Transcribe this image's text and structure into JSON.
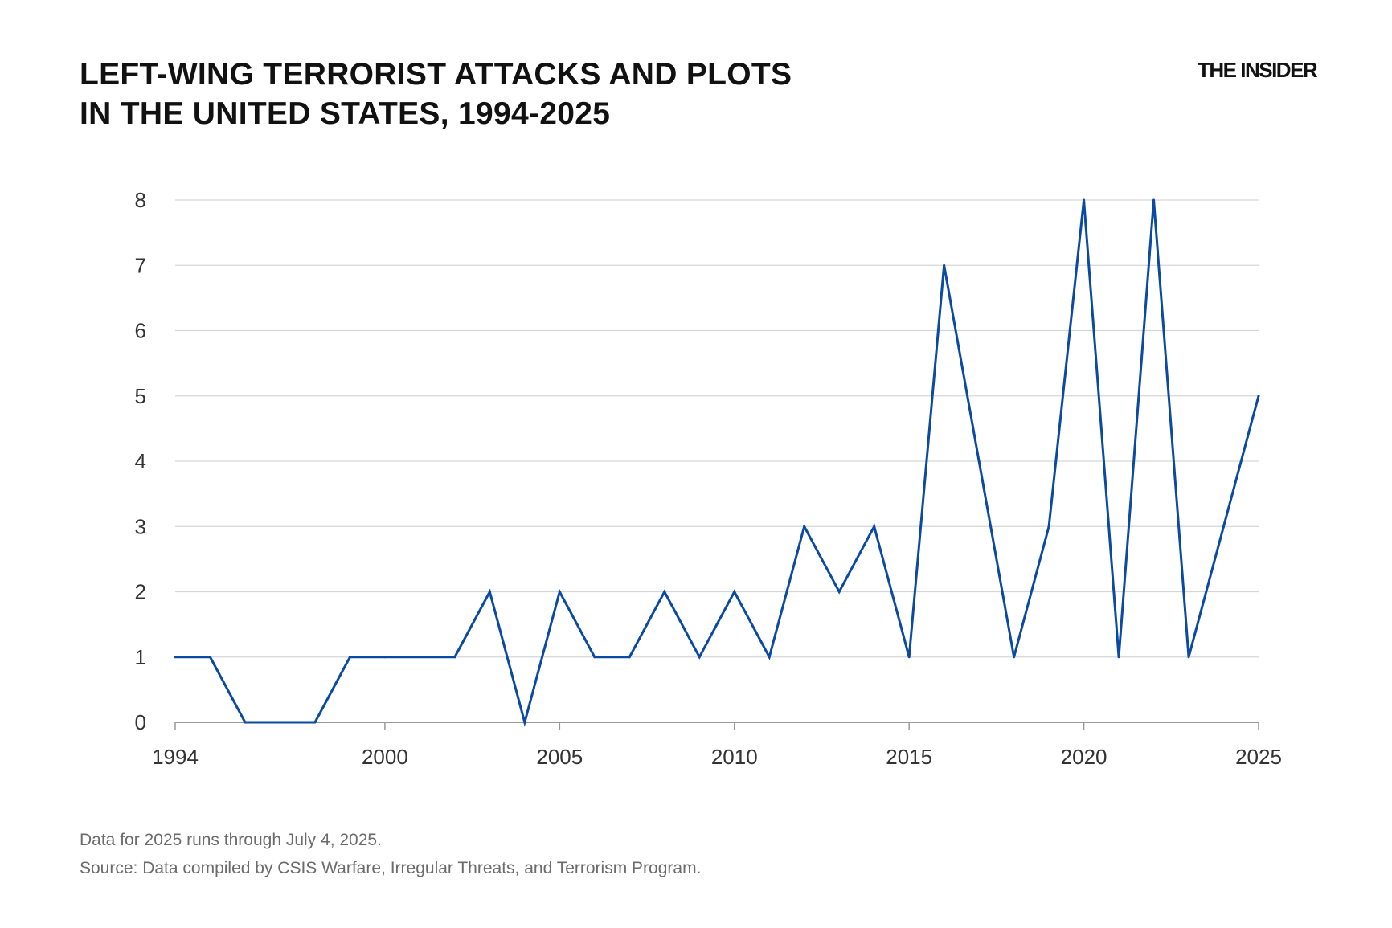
{
  "title_line1": "LEFT-WING TERRORIST ATTACKS AND PLOTS",
  "title_line2": "IN THE UNITED STATES, 1994-2025",
  "logo": "THE INSIDER",
  "footnote": "Data for 2025 runs through July 4, 2025.",
  "source": "Source: Data compiled by CSIS Warfare, Irregular Threats, and Terrorism Program.",
  "chart_data": {
    "type": "line",
    "title": "LEFT-WING TERRORIST ATTACKS AND PLOTS IN THE UNITED STATES, 1994-2025",
    "xlabel": "",
    "ylabel": "",
    "x": [
      1994,
      1995,
      1996,
      1997,
      1998,
      1999,
      2000,
      2001,
      2002,
      2003,
      2004,
      2005,
      2006,
      2007,
      2008,
      2009,
      2010,
      2011,
      2012,
      2013,
      2014,
      2015,
      2016,
      2017,
      2018,
      2019,
      2020,
      2021,
      2022,
      2023,
      2024,
      2025
    ],
    "series": [
      {
        "values": [
          1,
          1,
          0,
          0,
          0,
          1,
          1,
          1,
          1,
          2,
          0,
          2,
          1,
          1,
          2,
          1,
          2,
          1,
          3,
          2,
          3,
          1,
          7,
          4,
          1,
          3,
          8,
          1,
          8,
          1,
          3,
          5
        ],
        "color": "#0b4aa2"
      }
    ],
    "xlim": [
      1994,
      2025
    ],
    "ylim": [
      0,
      8
    ],
    "xticks": [
      1994,
      2000,
      2005,
      2010,
      2015,
      2020,
      2025
    ],
    "yticks": [
      0,
      1,
      2,
      3,
      4,
      5,
      6,
      7,
      8
    ],
    "grid": "horizontal",
    "legend": "none"
  }
}
